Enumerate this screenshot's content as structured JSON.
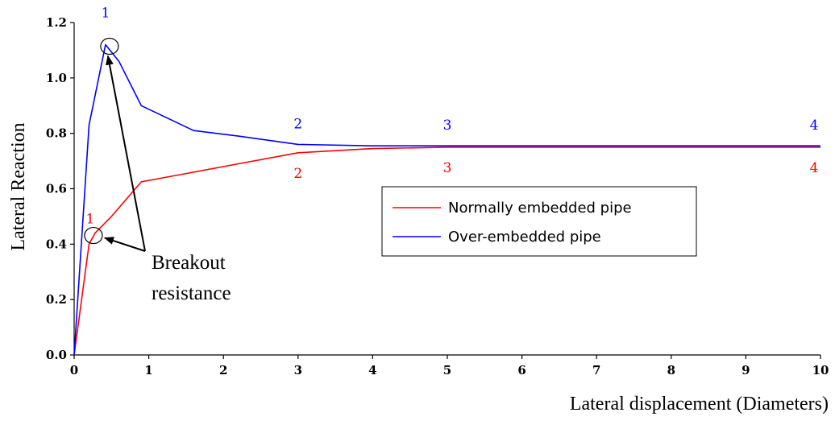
{
  "chart_data": {
    "type": "line",
    "xlabel": "Lateral displacement (Diameters)",
    "ylabel": "Lateral Reaction",
    "xlim": [
      0,
      10
    ],
    "ylim": [
      0,
      1.2
    ],
    "x_ticks": [
      "0",
      "1",
      "2",
      "3",
      "4",
      "5",
      "6",
      "7",
      "8",
      "9",
      "10"
    ],
    "y_ticks": [
      "0.0",
      "0.2",
      "0.4",
      "0.6",
      "0.8",
      "1.0",
      "1.2"
    ],
    "grid": false,
    "legend_position": "center-right",
    "series": [
      {
        "name": "Normally embedded pipe",
        "color": "#ff0000",
        "x": [
          0,
          0.2,
          0.28,
          0.5,
          0.9,
          1.5,
          2.2,
          3.0,
          4.0,
          5.0,
          7.5,
          10
        ],
        "y": [
          0,
          0.4,
          0.44,
          0.5,
          0.625,
          0.655,
          0.69,
          0.73,
          0.745,
          0.75,
          0.75,
          0.75
        ],
        "point_labels": [
          {
            "text": "1",
            "x": 0.28,
            "y": 0.44
          },
          {
            "text": "2",
            "x": 3.0,
            "y": 0.73
          },
          {
            "text": "3",
            "x": 5.0,
            "y": 0.75
          },
          {
            "text": "4",
            "x": 10,
            "y": 0.75
          }
        ]
      },
      {
        "name": "Over-embedded pipe",
        "color": "#0000ff",
        "x": [
          0,
          0.2,
          0.42,
          0.6,
          0.9,
          1.6,
          2.2,
          3.0,
          4.0,
          5.0,
          7.5,
          10
        ],
        "y": [
          0,
          0.83,
          1.12,
          1.06,
          0.9,
          0.81,
          0.79,
          0.76,
          0.755,
          0.755,
          0.755,
          0.755
        ],
        "point_labels": [
          {
            "text": "1",
            "x": 0.42,
            "y": 1.12
          },
          {
            "text": "2",
            "x": 3.0,
            "y": 0.76
          },
          {
            "text": "3",
            "x": 5.0,
            "y": 0.755
          },
          {
            "text": "4",
            "x": 10,
            "y": 0.755
          }
        ]
      }
    ],
    "annotation": {
      "lines": [
        "Breakout",
        "resistance"
      ],
      "targets": [
        {
          "x": 0.42,
          "y": 1.12
        },
        {
          "x": 0.28,
          "y": 0.44
        }
      ]
    }
  }
}
